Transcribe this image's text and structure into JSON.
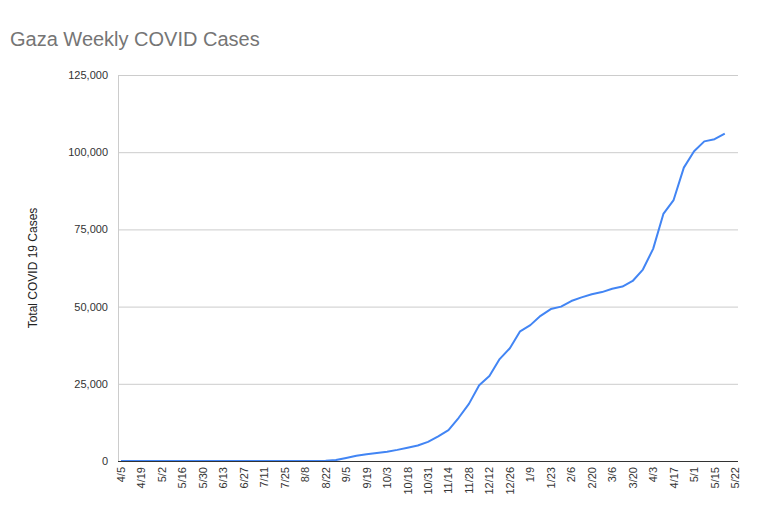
{
  "chart_data": {
    "type": "line",
    "title": "Gaza Weekly COVID Cases",
    "y_label": "Total COVID 19 Cases",
    "categories": [
      "4/5",
      null,
      "4/19",
      null,
      "5/2",
      null,
      "5/16",
      null,
      "5/30",
      null,
      "6/13",
      null,
      "6/27",
      null,
      "7/11",
      null,
      "7/25",
      null,
      "8/8",
      null,
      "8/22",
      null,
      "9/5",
      null,
      "9/19",
      null,
      "10/3",
      null,
      "10/18",
      null,
      "10/31",
      null,
      "11/14",
      null,
      "11/28",
      null,
      "12/12",
      null,
      "12/26",
      null,
      "1/9",
      null,
      "1/23",
      null,
      "2/6",
      null,
      "2/20",
      null,
      "3/6",
      null,
      "3/20",
      null,
      "4/3",
      null,
      "4/17",
      null,
      "5/1",
      null,
      "5/15",
      null,
      "5/22"
    ],
    "values": [
      0,
      0,
      0,
      0,
      0,
      0,
      0,
      0,
      0,
      0,
      0,
      0,
      0,
      0,
      0,
      0,
      0,
      0,
      0,
      0,
      100,
      300,
      1000,
      1700,
      2200,
      2600,
      3000,
      3600,
      4300,
      5000,
      6200,
      8000,
      10000,
      14000,
      18500,
      24500,
      27500,
      33000,
      36500,
      42000,
      44000,
      47000,
      49200,
      50000,
      51800,
      53000,
      54000,
      54700,
      55800,
      56500,
      58300,
      62000,
      68700,
      80000,
      84500,
      95000,
      100300,
      103500,
      104200,
      106000,
      null
    ],
    "color": "#4285f4",
    "ylim": [
      0,
      125000
    ],
    "yticks": [
      0,
      {
        "value": 25000,
        "label": "25,000"
      },
      {
        "value": 50000,
        "label": "50,000"
      },
      {
        "value": 75000,
        "label": "75,000"
      },
      {
        "value": 100000,
        "label": "100,000"
      },
      {
        "value": 125000,
        "label": "125,000"
      }
    ],
    "grid": true
  }
}
